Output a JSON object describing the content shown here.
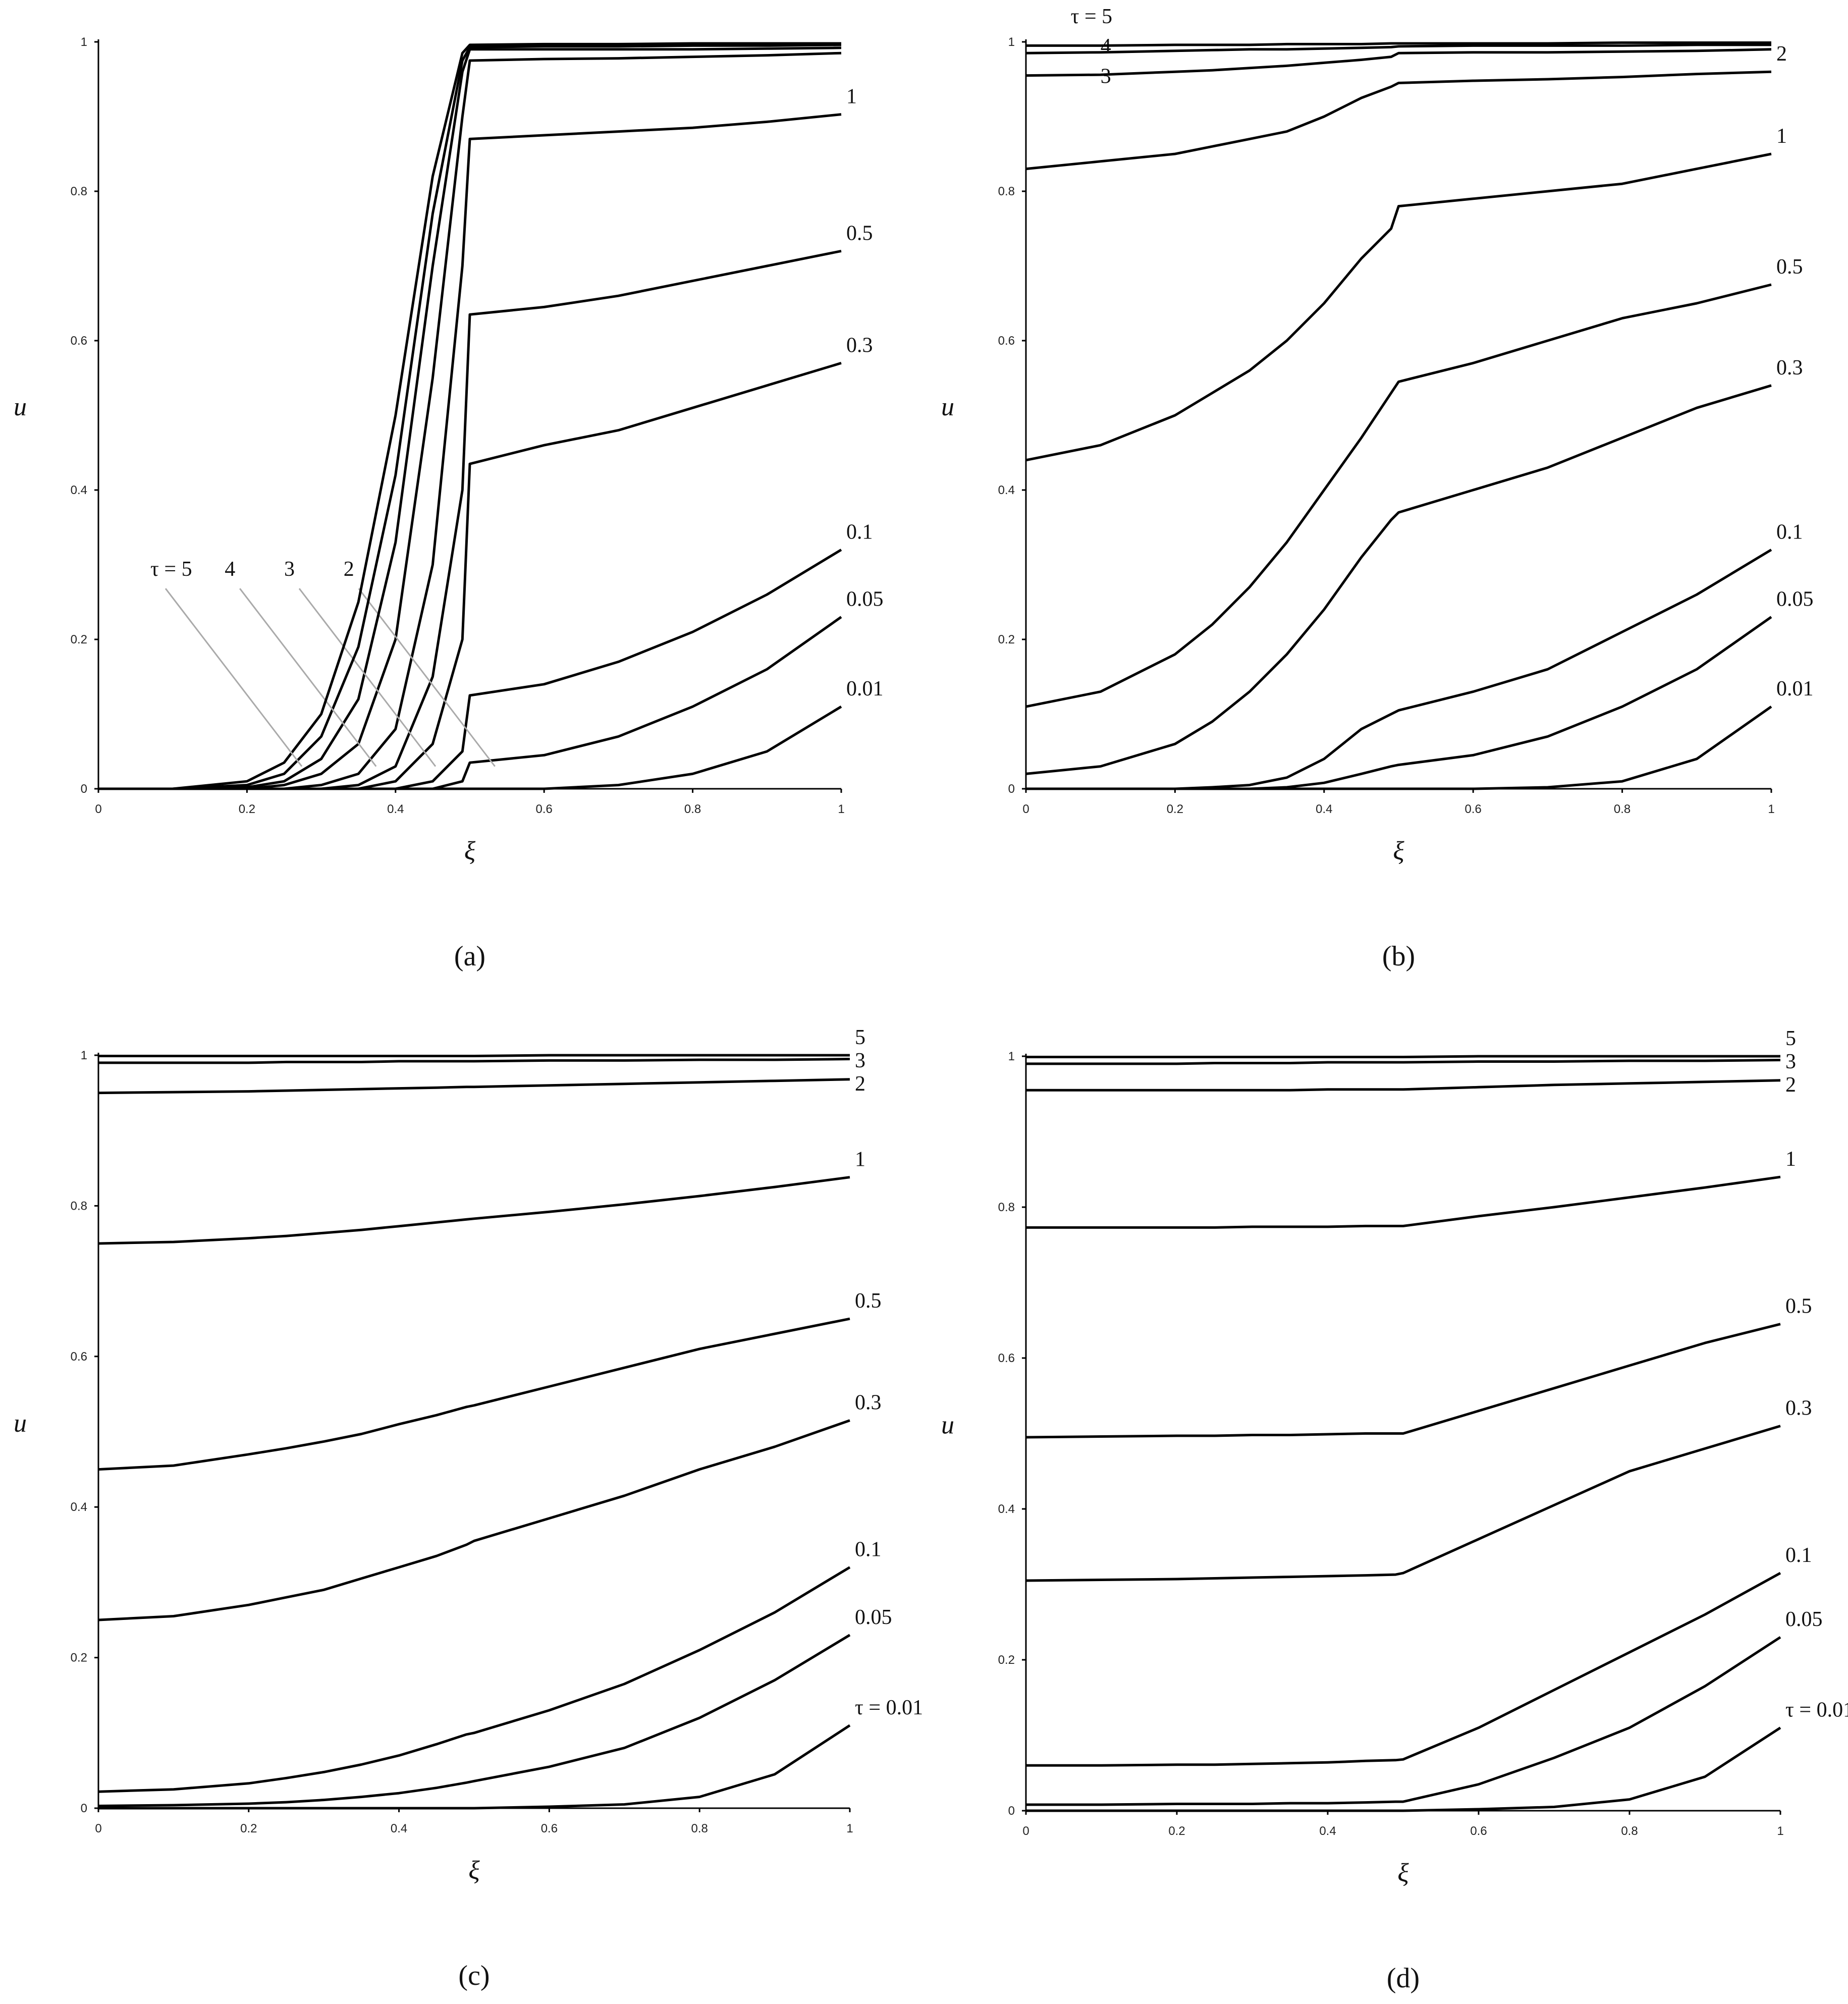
{
  "chart_data": [
    {
      "type": "line",
      "caption": "(a)",
      "xlabel": "ξ",
      "ylabel": "u",
      "color": "#000000",
      "xlim": [
        0,
        1
      ],
      "ylim": [
        0,
        1
      ],
      "xticks": [
        0,
        0.2,
        0.4,
        0.6,
        0.8,
        1
      ],
      "yticks": [
        0,
        0.2,
        0.4,
        0.6,
        0.8,
        1
      ],
      "x": [
        0,
        0.1,
        0.2,
        0.25,
        0.3,
        0.35,
        0.4,
        0.45,
        0.49,
        0.5,
        0.6,
        0.7,
        0.8,
        0.9,
        1
      ],
      "series": [
        {
          "name": "0.01",
          "values": [
            0,
            0,
            0,
            0,
            0,
            0,
            0,
            0,
            0,
            0,
            0,
            0.005,
            0.02,
            0.05,
            0.11
          ]
        },
        {
          "name": "0.05",
          "values": [
            0,
            0,
            0,
            0,
            0,
            0,
            0,
            0,
            0.01,
            0.035,
            0.045,
            0.07,
            0.11,
            0.16,
            0.23
          ]
        },
        {
          "name": "0.1",
          "values": [
            0,
            0,
            0,
            0,
            0,
            0,
            0,
            0.01,
            0.05,
            0.125,
            0.14,
            0.17,
            0.21,
            0.26,
            0.32
          ]
        },
        {
          "name": "0.3",
          "values": [
            0,
            0,
            0,
            0,
            0,
            0,
            0.01,
            0.06,
            0.2,
            0.435,
            0.46,
            0.48,
            0.51,
            0.54,
            0.57
          ]
        },
        {
          "name": "0.5",
          "values": [
            0,
            0,
            0,
            0,
            0,
            0.005,
            0.03,
            0.15,
            0.4,
            0.635,
            0.645,
            0.66,
            0.68,
            0.7,
            0.72
          ]
        },
        {
          "name": "1",
          "values": [
            0,
            0,
            0,
            0,
            0.005,
            0.02,
            0.08,
            0.3,
            0.7,
            0.87,
            0.875,
            0.88,
            0.885,
            0.893,
            0.903
          ]
        },
        {
          "name": "2",
          "values": [
            0,
            0,
            0,
            0.005,
            0.02,
            0.06,
            0.2,
            0.55,
            0.9,
            0.975,
            0.977,
            0.978,
            0.98,
            0.982,
            0.985
          ]
        },
        {
          "name": "3",
          "values": [
            0,
            0,
            0.002,
            0.01,
            0.04,
            0.12,
            0.33,
            0.7,
            0.96,
            0.99,
            0.99,
            0.99,
            0.99,
            0.991,
            0.992
          ]
        },
        {
          "name": "4",
          "values": [
            0,
            0,
            0.005,
            0.02,
            0.07,
            0.19,
            0.42,
            0.77,
            0.975,
            0.993,
            0.994,
            0.994,
            0.995,
            0.995,
            0.996
          ]
        },
        {
          "name": "τ = 5",
          "values": [
            0,
            0,
            0.01,
            0.035,
            0.1,
            0.25,
            0.5,
            0.82,
            0.985,
            0.996,
            0.997,
            0.997,
            0.998,
            0.998,
            0.998
          ]
        }
      ]
    },
    {
      "type": "line",
      "caption": "(b)",
      "xlabel": "ξ",
      "ylabel": "u",
      "color": "#000000",
      "xlim": [
        0,
        1
      ],
      "ylim": [
        0,
        1
      ],
      "xticks": [
        0,
        0.2,
        0.4,
        0.6,
        0.8,
        1
      ],
      "yticks": [
        0,
        0.2,
        0.4,
        0.6,
        0.8,
        1
      ],
      "x": [
        0,
        0.1,
        0.2,
        0.25,
        0.3,
        0.35,
        0.4,
        0.45,
        0.49,
        0.5,
        0.6,
        0.7,
        0.8,
        0.9,
        1
      ],
      "series": [
        {
          "name": "0.01",
          "values": [
            0,
            0,
            0,
            0,
            0,
            0,
            0,
            0,
            0,
            0,
            0,
            0.002,
            0.01,
            0.04,
            0.11
          ]
        },
        {
          "name": "0.05",
          "values": [
            0,
            0,
            0,
            0,
            0,
            0.002,
            0.008,
            0.02,
            0.03,
            0.032,
            0.045,
            0.07,
            0.11,
            0.16,
            0.23
          ]
        },
        {
          "name": "0.1",
          "values": [
            0,
            0,
            0,
            0.002,
            0.005,
            0.015,
            0.04,
            0.08,
            0.1,
            0.105,
            0.13,
            0.16,
            0.21,
            0.26,
            0.32
          ]
        },
        {
          "name": "0.3",
          "values": [
            0.02,
            0.03,
            0.06,
            0.09,
            0.13,
            0.18,
            0.24,
            0.31,
            0.36,
            0.37,
            0.4,
            0.43,
            0.47,
            0.51,
            0.54
          ]
        },
        {
          "name": "0.5",
          "values": [
            0.11,
            0.13,
            0.18,
            0.22,
            0.27,
            0.33,
            0.4,
            0.47,
            0.53,
            0.545,
            0.57,
            0.6,
            0.63,
            0.65,
            0.675
          ]
        },
        {
          "name": "1",
          "values": [
            0.44,
            0.46,
            0.5,
            0.53,
            0.56,
            0.6,
            0.65,
            0.71,
            0.75,
            0.78,
            0.79,
            0.8,
            0.81,
            0.83,
            0.85
          ]
        },
        {
          "name": "2",
          "values": [
            0.83,
            0.84,
            0.85,
            0.86,
            0.87,
            0.88,
            0.9,
            0.925,
            0.94,
            0.945,
            0.948,
            0.95,
            0.953,
            0.957,
            0.96
          ]
        },
        {
          "name": "3",
          "values": [
            0.955,
            0.956,
            0.96,
            0.962,
            0.965,
            0.968,
            0.972,
            0.976,
            0.98,
            0.985,
            0.986,
            0.986,
            0.987,
            0.988,
            0.99
          ]
        },
        {
          "name": "4",
          "values": [
            0.985,
            0.986,
            0.988,
            0.989,
            0.99,
            0.99,
            0.991,
            0.992,
            0.993,
            0.994,
            0.995,
            0.995,
            0.995,
            0.996,
            0.996
          ]
        },
        {
          "name": "τ = 5",
          "values": [
            0.995,
            0.995,
            0.996,
            0.996,
            0.996,
            0.997,
            0.997,
            0.997,
            0.998,
            0.998,
            0.998,
            0.998,
            0.999,
            0.999,
            0.999
          ]
        }
      ]
    },
    {
      "type": "line",
      "caption": "(c)",
      "xlabel": "ξ",
      "ylabel": "u",
      "color": "#000000",
      "xlim": [
        0,
        1
      ],
      "ylim": [
        0,
        1
      ],
      "xticks": [
        0,
        0.2,
        0.4,
        0.6,
        0.8,
        1
      ],
      "yticks": [
        0,
        0.2,
        0.4,
        0.6,
        0.8,
        1
      ],
      "x": [
        0,
        0.1,
        0.2,
        0.25,
        0.3,
        0.35,
        0.4,
        0.45,
        0.49,
        0.5,
        0.6,
        0.7,
        0.8,
        0.9,
        1
      ],
      "series": [
        {
          "name": "τ = 0.01",
          "values": [
            0,
            0,
            0,
            0,
            0,
            0,
            0,
            0,
            0,
            0,
            0.002,
            0.005,
            0.015,
            0.045,
            0.11
          ]
        },
        {
          "name": "0.05",
          "values": [
            0.003,
            0.004,
            0.006,
            0.008,
            0.011,
            0.015,
            0.02,
            0.027,
            0.034,
            0.036,
            0.055,
            0.08,
            0.12,
            0.17,
            0.23
          ]
        },
        {
          "name": "0.1",
          "values": [
            0.022,
            0.025,
            0.033,
            0.04,
            0.048,
            0.058,
            0.07,
            0.085,
            0.098,
            0.1,
            0.13,
            0.165,
            0.21,
            0.26,
            0.32
          ]
        },
        {
          "name": "0.3",
          "values": [
            0.25,
            0.255,
            0.27,
            0.28,
            0.29,
            0.305,
            0.32,
            0.335,
            0.35,
            0.355,
            0.385,
            0.415,
            0.45,
            0.48,
            0.515
          ]
        },
        {
          "name": "0.5",
          "values": [
            0.45,
            0.455,
            0.47,
            0.478,
            0.487,
            0.497,
            0.51,
            0.522,
            0.533,
            0.535,
            0.56,
            0.585,
            0.61,
            0.63,
            0.65
          ]
        },
        {
          "name": "1",
          "values": [
            0.75,
            0.752,
            0.757,
            0.76,
            0.764,
            0.768,
            0.773,
            0.778,
            0.782,
            0.783,
            0.792,
            0.802,
            0.813,
            0.825,
            0.838
          ]
        },
        {
          "name": "2",
          "values": [
            0.95,
            0.951,
            0.952,
            0.953,
            0.954,
            0.955,
            0.956,
            0.957,
            0.958,
            0.958,
            0.96,
            0.962,
            0.964,
            0.966,
            0.968
          ]
        },
        {
          "name": "3",
          "values": [
            0.99,
            0.99,
            0.99,
            0.991,
            0.991,
            0.991,
            0.992,
            0.992,
            0.992,
            0.992,
            0.993,
            0.993,
            0.994,
            0.994,
            0.995
          ]
        },
        {
          "name": "5",
          "values": [
            0.999,
            0.999,
            0.999,
            0.999,
            0.999,
            0.999,
            0.999,
            0.999,
            0.999,
            0.999,
            1,
            1,
            1,
            1,
            1
          ]
        }
      ]
    },
    {
      "type": "line",
      "caption": "(d)",
      "xlabel": "ξ",
      "ylabel": "u",
      "color": "#000000",
      "xlim": [
        0,
        1
      ],
      "ylim": [
        0,
        1
      ],
      "xticks": [
        0,
        0.2,
        0.4,
        0.6,
        0.8,
        1
      ],
      "yticks": [
        0,
        0.2,
        0.4,
        0.6,
        0.8,
        1
      ],
      "x": [
        0,
        0.1,
        0.2,
        0.25,
        0.3,
        0.35,
        0.4,
        0.45,
        0.49,
        0.5,
        0.6,
        0.7,
        0.8,
        0.9,
        1
      ],
      "series": [
        {
          "name": "τ = 0.01",
          "values": [
            0,
            0,
            0,
            0,
            0,
            0,
            0,
            0,
            0,
            0,
            0.002,
            0.005,
            0.015,
            0.045,
            0.11
          ]
        },
        {
          "name": "0.05",
          "values": [
            0.008,
            0.008,
            0.009,
            0.009,
            0.009,
            0.01,
            0.01,
            0.011,
            0.012,
            0.012,
            0.035,
            0.07,
            0.11,
            0.165,
            0.23
          ]
        },
        {
          "name": "0.1",
          "values": [
            0.06,
            0.06,
            0.061,
            0.061,
            0.062,
            0.063,
            0.064,
            0.066,
            0.067,
            0.068,
            0.11,
            0.16,
            0.21,
            0.26,
            0.315
          ]
        },
        {
          "name": "0.3",
          "values": [
            0.305,
            0.306,
            0.307,
            0.308,
            0.309,
            0.31,
            0.311,
            0.312,
            0.313,
            0.315,
            0.36,
            0.405,
            0.45,
            0.48,
            0.51
          ]
        },
        {
          "name": "0.5",
          "values": [
            0.495,
            0.496,
            0.497,
            0.497,
            0.498,
            0.498,
            0.499,
            0.5,
            0.5,
            0.5,
            0.53,
            0.56,
            0.59,
            0.62,
            0.645
          ]
        },
        {
          "name": "1",
          "values": [
            0.773,
            0.773,
            0.773,
            0.773,
            0.774,
            0.774,
            0.774,
            0.775,
            0.775,
            0.775,
            0.788,
            0.8,
            0.813,
            0.826,
            0.84
          ]
        },
        {
          "name": "2",
          "values": [
            0.955,
            0.955,
            0.955,
            0.955,
            0.955,
            0.955,
            0.956,
            0.956,
            0.956,
            0.956,
            0.959,
            0.962,
            0.964,
            0.966,
            0.968
          ]
        },
        {
          "name": "3",
          "values": [
            0.99,
            0.99,
            0.99,
            0.991,
            0.991,
            0.991,
            0.992,
            0.992,
            0.992,
            0.992,
            0.993,
            0.993,
            0.994,
            0.994,
            0.995
          ]
        },
        {
          "name": "5",
          "values": [
            0.999,
            0.999,
            0.999,
            0.999,
            0.999,
            0.999,
            0.999,
            0.999,
            0.999,
            0.999,
            1,
            1,
            1,
            1,
            1
          ]
        }
      ]
    }
  ]
}
